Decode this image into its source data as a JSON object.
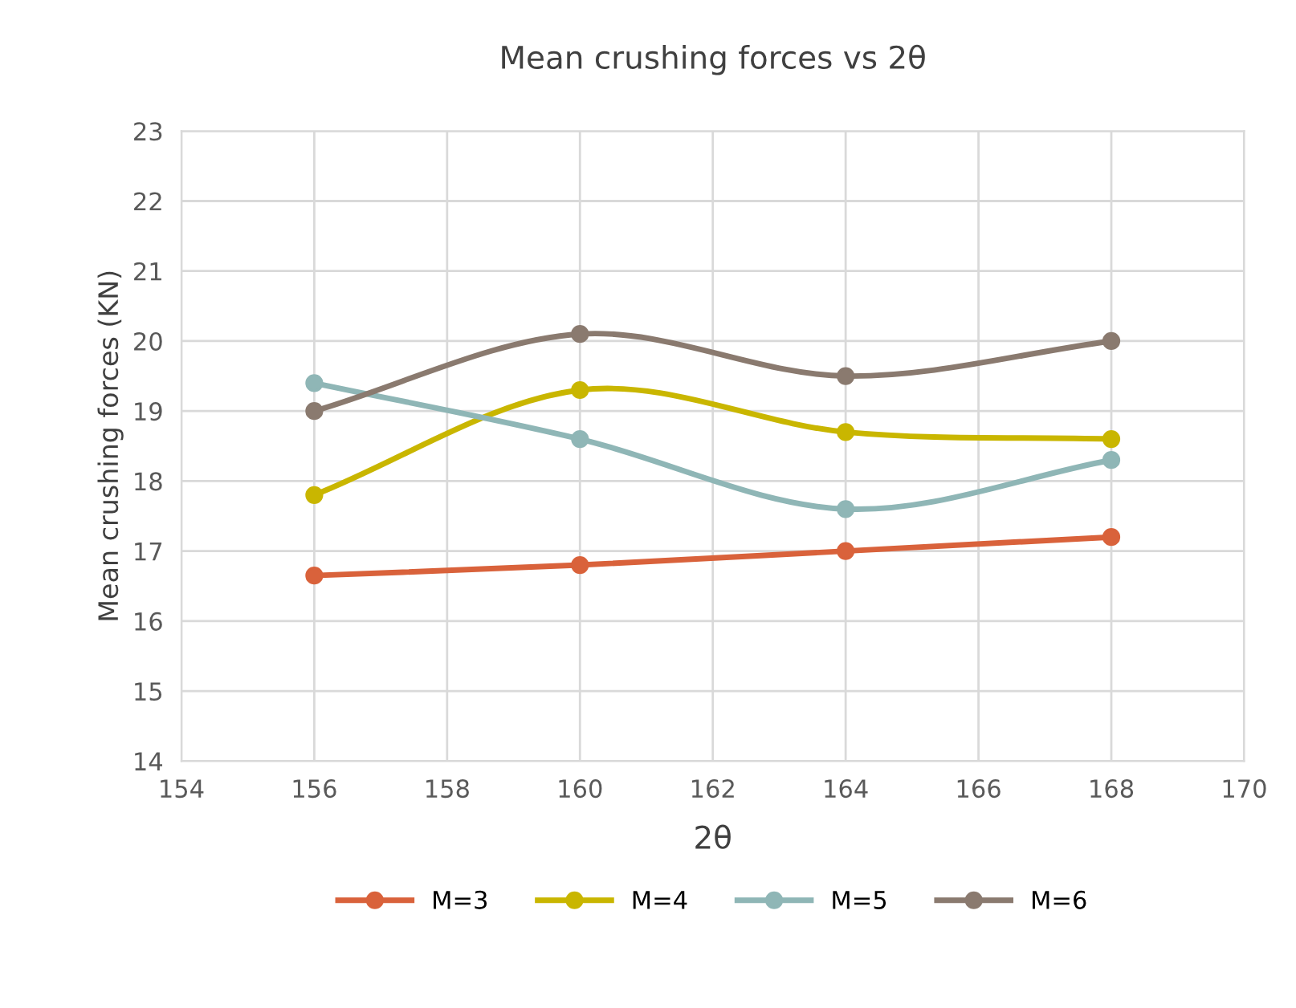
{
  "chart_data": {
    "type": "line",
    "title": "Mean crushing forces vs 2θ",
    "xlabel": "2θ",
    "ylabel": "Mean crushing forces (KN)",
    "x": [
      156,
      160,
      164,
      168
    ],
    "series": [
      {
        "name": "M=3",
        "color": "#d9623b",
        "values": [
          16.65,
          16.8,
          17.0,
          17.2
        ]
      },
      {
        "name": "M=4",
        "color": "#c9b600",
        "values": [
          17.8,
          19.3,
          18.7,
          18.6
        ]
      },
      {
        "name": "M=5",
        "color": "#8fb6b6",
        "values": [
          19.4,
          18.6,
          17.6,
          18.3
        ]
      },
      {
        "name": "M=6",
        "color": "#8a7a6f",
        "values": [
          19.0,
          20.1,
          19.5,
          20.0
        ]
      }
    ],
    "xlim": [
      154,
      170
    ],
    "xticks": [
      154,
      156,
      158,
      160,
      162,
      164,
      166,
      168,
      170
    ],
    "ylim": [
      14,
      23
    ],
    "yticks": [
      14,
      15,
      16,
      17,
      18,
      19,
      20,
      21,
      22,
      23
    ],
    "grid": true,
    "legend": "bottom",
    "marker": "circle",
    "line_style": "solid"
  }
}
